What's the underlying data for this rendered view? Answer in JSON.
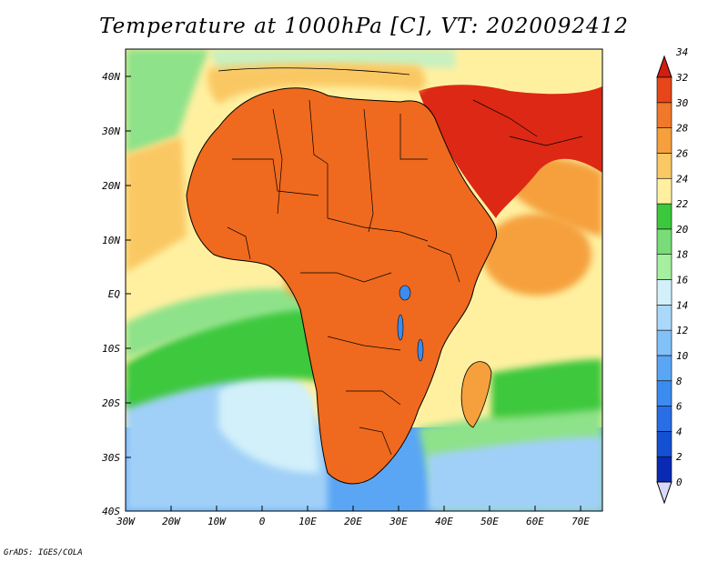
{
  "title": "Temperature at 1000hPa [C], VT: 2020092412",
  "footer": "GrADS: IGES/COLA",
  "map": {
    "lat_labels": [
      "40N",
      "30N",
      "20N",
      "10N",
      "EQ",
      "10S",
      "20S",
      "30S",
      "40S"
    ],
    "lon_labels": [
      "30W",
      "20W",
      "10W",
      "0",
      "10E",
      "20E",
      "30E",
      "40E",
      "50E",
      "60E",
      "70E"
    ]
  },
  "colorbar": {
    "levels": [
      "0",
      "2",
      "4",
      "6",
      "8",
      "10",
      "12",
      "14",
      "16",
      "18",
      "20",
      "22",
      "24",
      "26",
      "28",
      "30",
      "32",
      "34"
    ],
    "colors": [
      "#0a0a78",
      "#0a2ab4",
      "#1450d2",
      "#2a6ee6",
      "#3c8cf0",
      "#5aa6f4",
      "#82c0f8",
      "#aad8fa",
      "#d2f0fa",
      "#a6eea0",
      "#78dc78",
      "#3cc83c",
      "#fff0a0",
      "#fac864",
      "#f5a03c",
      "#f0782a",
      "#e64619",
      "#d21e10"
    ]
  },
  "field_colors": {
    "hot": "#dc2814",
    "warm": "#ef6a1e",
    "orange": "#f5a03c",
    "yellow": "#fac864",
    "cream": "#fff0a0",
    "green": "#3cc83c",
    "lightgreen": "#8ee28a",
    "palegreen": "#c8f0c0",
    "ice": "#d2f0fa",
    "lightblue": "#a0d0f8",
    "blue": "#5aa6f4"
  }
}
